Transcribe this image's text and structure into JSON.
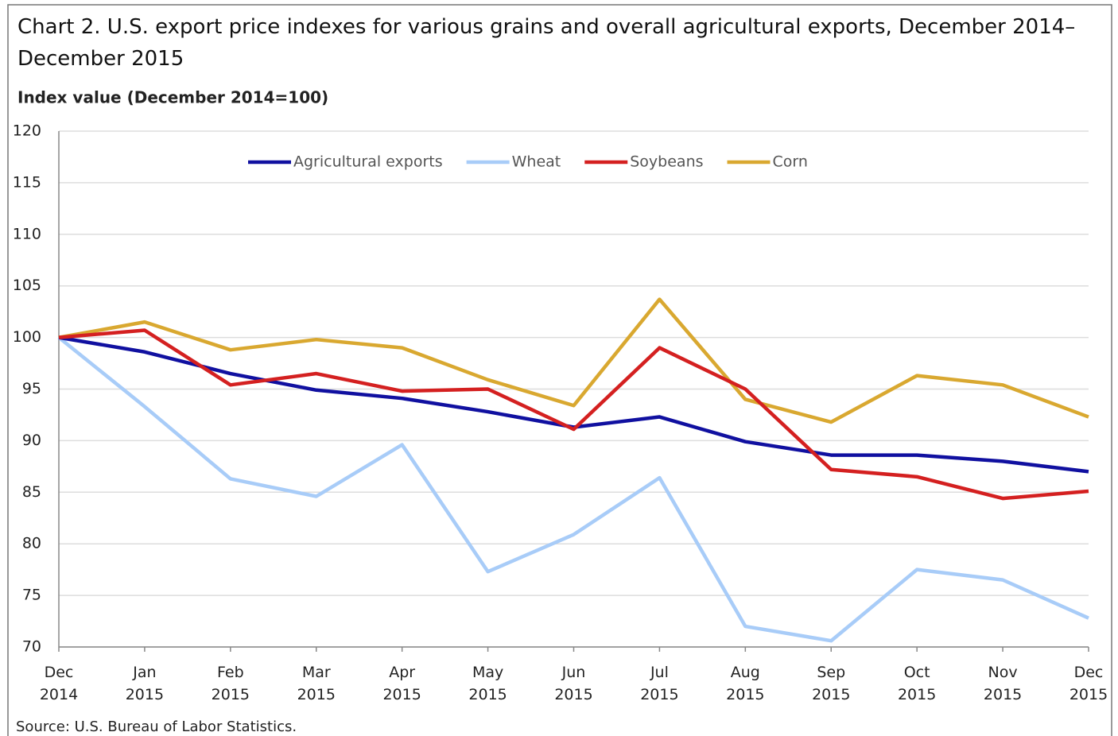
{
  "chart_data": {
    "type": "line",
    "title": "Chart 2. U.S. export price indexes for various grains and overall agricultural exports, December 2014–December 2015",
    "y_label": "Index value (December 2014=100)",
    "source": "Source:  U.S. Bureau of Labor Statistics.",
    "categories": [
      "Dec 2014",
      "Jan 2015",
      "Feb 2015",
      "Mar 2015",
      "Apr 2015",
      "May 2015",
      "Jun 2015",
      "Jul 2015",
      "Aug 2015",
      "Sep 2015",
      "Oct 2015",
      "Nov 2015",
      "Dec 2015"
    ],
    "series": [
      {
        "name": "Agricultural exports",
        "color": "#1010a0",
        "values": [
          100,
          98.6,
          96.5,
          94.9,
          94.1,
          92.8,
          91.3,
          92.3,
          89.9,
          88.6,
          88.6,
          88.0,
          87.0
        ]
      },
      {
        "name": "Wheat",
        "color": "#a8ccf8",
        "values": [
          100,
          93.3,
          86.3,
          84.6,
          89.6,
          77.3,
          80.9,
          86.4,
          72.0,
          70.6,
          77.5,
          76.5,
          72.8
        ]
      },
      {
        "name": "Soybeans",
        "color": "#d42020",
        "values": [
          100,
          100.7,
          95.4,
          96.5,
          94.8,
          95.0,
          91.1,
          99.0,
          95.0,
          87.2,
          86.5,
          84.4,
          85.1
        ]
      },
      {
        "name": "Corn",
        "color": "#d9a830",
        "values": [
          100,
          101.5,
          98.8,
          99.8,
          99.0,
          95.9,
          93.4,
          103.7,
          94.0,
          91.8,
          96.3,
          95.4,
          92.3
        ]
      }
    ],
    "ylim": [
      70,
      120
    ],
    "yticks": [
      70,
      75,
      80,
      85,
      90,
      95,
      100,
      105,
      110,
      115,
      120
    ],
    "grid": true,
    "legend": "top"
  }
}
